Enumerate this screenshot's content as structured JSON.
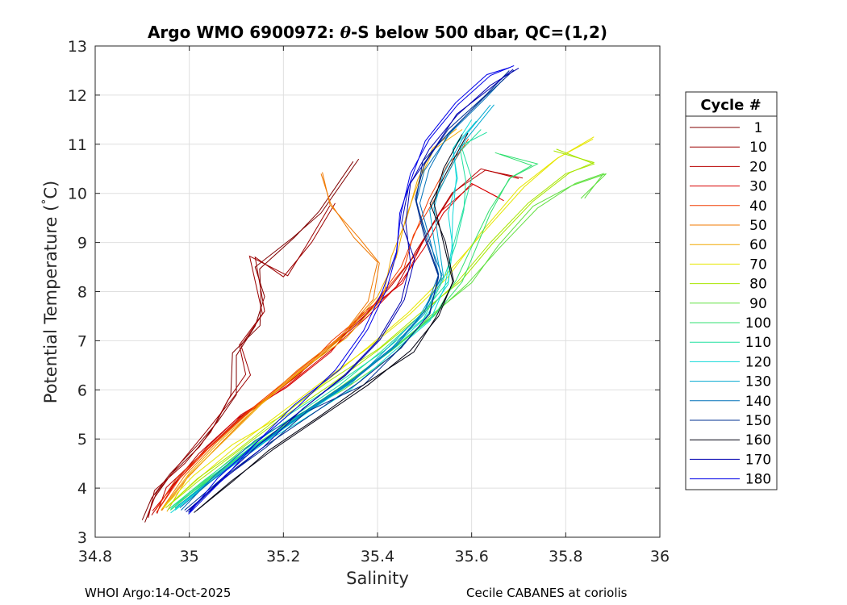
{
  "chart_data": {
    "type": "line",
    "title_prefix": "Argo WMO 6900972: ",
    "title_theta": "θ",
    "title_suffix": "-S below 500 dbar,  QC=(1,2)",
    "xlabel": "Salinity",
    "ylabel_main": "Potential Temperature (",
    "ylabel_degree": "°",
    "ylabel_unit": "C)",
    "xlim": [
      34.8,
      36.0
    ],
    "ylim": [
      3,
      13
    ],
    "xticks": [
      34.8,
      35.0,
      35.2,
      35.4,
      35.6,
      35.8,
      36.0
    ],
    "xtick_labels": [
      "34.8",
      "35",
      "35.2",
      "35.4",
      "35.6",
      "35.8",
      "36"
    ],
    "yticks": [
      3,
      4,
      5,
      6,
      7,
      8,
      9,
      10,
      11,
      12,
      13
    ],
    "ytick_labels": [
      "3",
      "4",
      "5",
      "6",
      "7",
      "8",
      "9",
      "10",
      "11",
      "12",
      "13"
    ],
    "grid": true,
    "legend_title": "Cycle #",
    "legend_position": "right",
    "series": [
      {
        "name": "1",
        "color": "#800000",
        "values": [
          [
            34.9,
            3.35
          ],
          [
            34.92,
            3.8
          ],
          [
            34.96,
            4.3
          ],
          [
            35.02,
            4.9
          ],
          [
            35.06,
            5.35
          ],
          [
            35.1,
            5.9
          ],
          [
            35.1,
            6.7
          ],
          [
            35.14,
            7.3
          ],
          [
            35.16,
            7.9
          ],
          [
            35.14,
            8.5
          ],
          [
            35.22,
            9.1
          ],
          [
            35.28,
            9.6
          ],
          [
            35.36,
            10.7
          ]
        ]
      },
      {
        "name": "10",
        "color": "#9c0000",
        "values": [
          [
            34.91,
            3.4
          ],
          [
            34.93,
            3.9
          ],
          [
            34.98,
            4.5
          ],
          [
            35.04,
            5.2
          ],
          [
            35.09,
            5.8
          ],
          [
            35.13,
            6.3
          ],
          [
            35.11,
            6.9
          ],
          [
            35.16,
            7.6
          ],
          [
            35.14,
            8.7
          ],
          [
            35.2,
            8.3
          ],
          [
            35.26,
            9.0
          ],
          [
            35.31,
            9.8
          ]
        ]
      },
      {
        "name": "20",
        "color": "#b80000",
        "values": [
          [
            34.92,
            3.45
          ],
          [
            34.96,
            4.0
          ],
          [
            35.02,
            4.7
          ],
          [
            35.1,
            5.4
          ],
          [
            35.19,
            6.0
          ],
          [
            35.28,
            6.7
          ],
          [
            35.36,
            7.4
          ],
          [
            35.44,
            8.1
          ],
          [
            35.48,
            8.8
          ],
          [
            35.52,
            9.4
          ],
          [
            35.56,
            10.0
          ],
          [
            35.62,
            10.5
          ],
          [
            35.7,
            10.3
          ]
        ]
      },
      {
        "name": "30",
        "color": "#d80000",
        "values": [
          [
            34.93,
            3.5
          ],
          [
            34.97,
            4.1
          ],
          [
            35.04,
            4.8
          ],
          [
            35.12,
            5.5
          ],
          [
            35.21,
            6.1
          ],
          [
            35.3,
            6.8
          ],
          [
            35.38,
            7.5
          ],
          [
            35.45,
            8.2
          ],
          [
            35.5,
            8.9
          ],
          [
            35.54,
            9.6
          ],
          [
            35.6,
            10.2
          ],
          [
            35.66,
            9.9
          ]
        ]
      },
      {
        "name": "40",
        "color": "#f03c00",
        "values": [
          [
            34.93,
            3.5
          ],
          [
            34.98,
            4.2
          ],
          [
            35.05,
            4.9
          ],
          [
            35.13,
            5.6
          ],
          [
            35.22,
            6.3
          ],
          [
            35.31,
            7.0
          ],
          [
            35.39,
            7.7
          ],
          [
            35.45,
            8.5
          ],
          [
            35.48,
            9.2
          ],
          [
            35.51,
            9.9
          ],
          [
            35.55,
            10.6
          ],
          [
            35.6,
            11.1
          ]
        ]
      },
      {
        "name": "50",
        "color": "#f07800",
        "values": [
          [
            34.94,
            3.55
          ],
          [
            34.99,
            4.25
          ],
          [
            35.06,
            4.95
          ],
          [
            35.14,
            5.65
          ],
          [
            35.23,
            6.35
          ],
          [
            35.32,
            7.05
          ],
          [
            35.38,
            7.8
          ],
          [
            35.4,
            8.6
          ],
          [
            35.35,
            9.1
          ],
          [
            35.3,
            9.8
          ],
          [
            35.28,
            10.4
          ]
        ]
      },
      {
        "name": "60",
        "color": "#f0a800",
        "values": [
          [
            34.94,
            3.55
          ],
          [
            35.0,
            4.3
          ],
          [
            35.07,
            5.0
          ],
          [
            35.15,
            5.7
          ],
          [
            35.24,
            6.4
          ],
          [
            35.33,
            7.1
          ],
          [
            35.4,
            7.9
          ],
          [
            35.44,
            8.7
          ],
          [
            35.46,
            9.5
          ],
          [
            35.49,
            10.3
          ],
          [
            35.52,
            10.9
          ],
          [
            35.58,
            11.3
          ]
        ]
      },
      {
        "name": "70",
        "color": "#e6e600",
        "values": [
          [
            34.95,
            3.6
          ],
          [
            35.02,
            4.2
          ],
          [
            35.1,
            4.85
          ],
          [
            35.19,
            5.5
          ],
          [
            35.28,
            6.15
          ],
          [
            35.38,
            6.85
          ],
          [
            35.47,
            7.55
          ],
          [
            35.55,
            8.3
          ],
          [
            35.62,
            9.2
          ],
          [
            35.7,
            10.1
          ],
          [
            35.78,
            10.7
          ],
          [
            35.86,
            11.15
          ]
        ]
      },
      {
        "name": "80",
        "color": "#a8e600",
        "values": [
          [
            34.95,
            3.6
          ],
          [
            35.02,
            4.15
          ],
          [
            35.11,
            4.8
          ],
          [
            35.2,
            5.45
          ],
          [
            35.3,
            6.1
          ],
          [
            35.4,
            6.8
          ],
          [
            35.49,
            7.5
          ],
          [
            35.57,
            8.2
          ],
          [
            35.64,
            9.0
          ],
          [
            35.72,
            9.8
          ],
          [
            35.8,
            10.4
          ],
          [
            35.86,
            10.6
          ],
          [
            35.78,
            10.9
          ]
        ]
      },
      {
        "name": "90",
        "color": "#60e040",
        "values": [
          [
            34.96,
            3.55
          ],
          [
            35.03,
            4.1
          ],
          [
            35.12,
            4.75
          ],
          [
            35.22,
            5.4
          ],
          [
            35.32,
            6.05
          ],
          [
            35.42,
            6.75
          ],
          [
            35.51,
            7.45
          ],
          [
            35.59,
            8.15
          ],
          [
            35.66,
            8.9
          ],
          [
            35.74,
            9.7
          ],
          [
            35.82,
            10.2
          ],
          [
            35.88,
            10.4
          ],
          [
            35.84,
            9.9
          ]
        ]
      },
      {
        "name": "100",
        "color": "#30e070",
        "values": [
          [
            34.96,
            3.6
          ],
          [
            35.04,
            4.15
          ],
          [
            35.13,
            4.8
          ],
          [
            35.23,
            5.45
          ],
          [
            35.33,
            6.1
          ],
          [
            35.43,
            6.8
          ],
          [
            35.52,
            7.5
          ],
          [
            35.58,
            8.2
          ],
          [
            35.61,
            8.9
          ],
          [
            35.64,
            9.6
          ],
          [
            35.68,
            10.3
          ],
          [
            35.74,
            10.6
          ],
          [
            35.66,
            10.8
          ]
        ]
      },
      {
        "name": "110",
        "color": "#20e0a0",
        "values": [
          [
            34.96,
            3.6
          ],
          [
            35.03,
            4.15
          ],
          [
            35.12,
            4.8
          ],
          [
            35.22,
            5.45
          ],
          [
            35.32,
            6.1
          ],
          [
            35.41,
            6.8
          ],
          [
            35.49,
            7.5
          ],
          [
            35.55,
            8.2
          ],
          [
            35.56,
            8.9
          ],
          [
            35.58,
            9.6
          ],
          [
            35.6,
            10.3
          ],
          [
            35.58,
            10.9
          ],
          [
            35.62,
            11.3
          ]
        ]
      },
      {
        "name": "120",
        "color": "#10d8d8",
        "values": [
          [
            34.97,
            3.55
          ],
          [
            35.04,
            4.1
          ],
          [
            35.13,
            4.75
          ],
          [
            35.23,
            5.4
          ],
          [
            35.33,
            6.05
          ],
          [
            35.42,
            6.75
          ],
          [
            35.5,
            7.45
          ],
          [
            35.55,
            8.15
          ],
          [
            35.56,
            8.9
          ],
          [
            35.55,
            9.6
          ],
          [
            35.57,
            10.3
          ],
          [
            35.56,
            10.9
          ],
          [
            35.6,
            11.5
          ]
        ]
      },
      {
        "name": "130",
        "color": "#00a8d0",
        "values": [
          [
            34.97,
            3.6
          ],
          [
            35.05,
            4.2
          ],
          [
            35.14,
            4.85
          ],
          [
            35.24,
            5.5
          ],
          [
            35.34,
            6.15
          ],
          [
            35.43,
            6.85
          ],
          [
            35.5,
            7.55
          ],
          [
            35.54,
            8.3
          ],
          [
            35.53,
            9.0
          ],
          [
            35.52,
            9.7
          ],
          [
            35.54,
            10.4
          ],
          [
            35.58,
            11.1
          ],
          [
            35.64,
            11.8
          ]
        ]
      },
      {
        "name": "140",
        "color": "#0070b8",
        "values": [
          [
            34.98,
            3.6
          ],
          [
            35.06,
            4.25
          ],
          [
            35.15,
            4.9
          ],
          [
            35.25,
            5.55
          ],
          [
            35.35,
            6.2
          ],
          [
            35.44,
            6.9
          ],
          [
            35.5,
            7.6
          ],
          [
            35.53,
            8.35
          ],
          [
            35.51,
            9.1
          ],
          [
            35.49,
            9.8
          ],
          [
            35.51,
            10.5
          ],
          [
            35.55,
            11.2
          ],
          [
            35.62,
            11.9
          ],
          [
            35.66,
            12.3
          ]
        ]
      },
      {
        "name": "150",
        "color": "#003090",
        "values": [
          [
            34.99,
            3.55
          ],
          [
            35.07,
            4.2
          ],
          [
            35.16,
            4.85
          ],
          [
            35.26,
            5.5
          ],
          [
            35.36,
            6.15
          ],
          [
            35.45,
            6.85
          ],
          [
            35.51,
            7.55
          ],
          [
            35.53,
            8.3
          ],
          [
            35.5,
            9.1
          ],
          [
            35.48,
            9.9
          ],
          [
            35.5,
            10.6
          ],
          [
            35.55,
            11.3
          ],
          [
            35.63,
            12.0
          ],
          [
            35.68,
            12.5
          ]
        ]
      },
      {
        "name": "160",
        "color": "#000010",
        "values": [
          [
            35.01,
            3.5
          ],
          [
            35.09,
            4.15
          ],
          [
            35.18,
            4.8
          ],
          [
            35.28,
            5.45
          ],
          [
            35.38,
            6.1
          ],
          [
            35.47,
            6.8
          ],
          [
            35.53,
            7.5
          ],
          [
            35.56,
            8.2
          ],
          [
            35.54,
            9.0
          ],
          [
            35.52,
            9.8
          ],
          [
            35.54,
            10.5
          ],
          [
            35.58,
            11.2
          ]
        ]
      },
      {
        "name": "170",
        "color": "#0000b0",
        "values": [
          [
            35.0,
            3.55
          ],
          [
            35.07,
            4.2
          ],
          [
            35.15,
            4.9
          ],
          [
            35.24,
            5.6
          ],
          [
            35.33,
            6.3
          ],
          [
            35.4,
            7.0
          ],
          [
            35.45,
            7.8
          ],
          [
            35.47,
            8.6
          ],
          [
            35.46,
            9.4
          ],
          [
            35.47,
            10.2
          ],
          [
            35.51,
            10.9
          ],
          [
            35.57,
            11.6
          ],
          [
            35.64,
            12.2
          ],
          [
            35.7,
            12.55
          ]
        ]
      },
      {
        "name": "180",
        "color": "#0000e8",
        "values": [
          [
            35.0,
            3.5
          ],
          [
            35.06,
            4.2
          ],
          [
            35.14,
            4.9
          ],
          [
            35.23,
            5.65
          ],
          [
            35.31,
            6.4
          ],
          [
            35.37,
            7.2
          ],
          [
            35.41,
            8.0
          ],
          [
            35.44,
            8.8
          ],
          [
            35.45,
            9.6
          ],
          [
            35.47,
            10.4
          ],
          [
            35.51,
            11.1
          ],
          [
            35.57,
            11.8
          ],
          [
            35.64,
            12.4
          ],
          [
            35.69,
            12.6
          ]
        ]
      }
    ]
  },
  "footer": {
    "left": "WHOI Argo:14-Oct-2025",
    "right": "Cecile CABANES at coriolis"
  }
}
